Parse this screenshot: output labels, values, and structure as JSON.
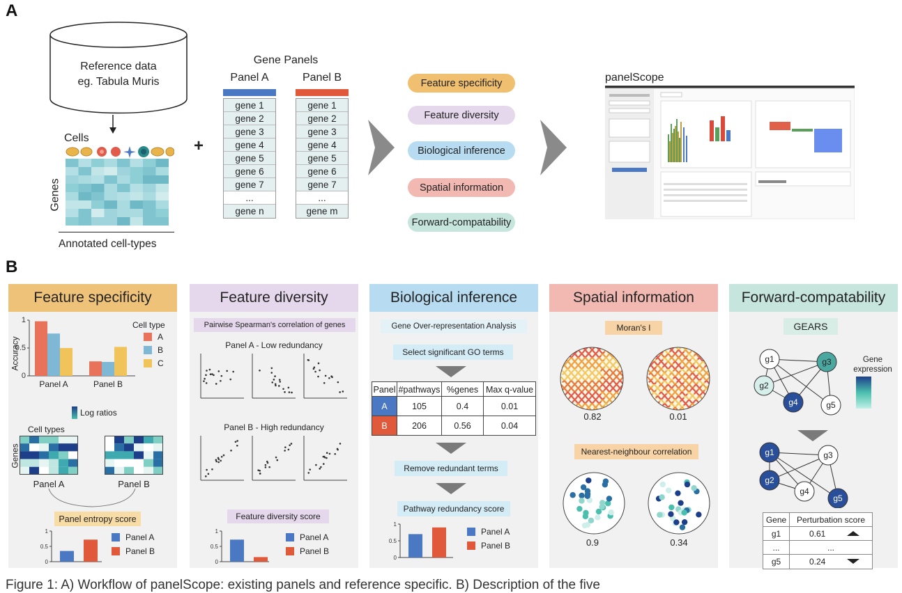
{
  "figure": {
    "section_a": "A",
    "section_b": "B",
    "caption": "Figure 1: A) Workflow of panelScope: existing panels and reference specific. B) Description of the five"
  },
  "workflow": {
    "reference_line1": "Reference data",
    "reference_line2": "eg. Tabula Muris",
    "cells_label": "Cells",
    "genes_label": "Genes",
    "annotated_label": "Annotated cell-types",
    "plus": "+",
    "gene_panels_title": "Gene Panels",
    "panel_a": {
      "name": "Panel A",
      "color": "#4a78c2",
      "genes": [
        "gene 1",
        "gene 2",
        "gene 3",
        "gene 4",
        "gene 5",
        "gene 6",
        "gene 7",
        "...",
        "gene n"
      ]
    },
    "panel_b": {
      "name": "Panel B",
      "color": "#e0593a",
      "genes": [
        "gene 1",
        "gene 2",
        "gene 3",
        "gene 4",
        "gene 5",
        "gene 6",
        "gene 7",
        "...",
        "gene m"
      ]
    },
    "metrics": [
      {
        "label": "Feature specificity",
        "color": "#f0c070"
      },
      {
        "label": "Feature diversity",
        "color": "#e6d8ec"
      },
      {
        "label": "Biological inference",
        "color": "#b7dcf2"
      },
      {
        "label": "Spatial information",
        "color": "#f2b8b2"
      },
      {
        "label": "Forward-compatability",
        "color": "#c6e6dd"
      }
    ],
    "app_title": "panelScope"
  },
  "panels": {
    "specificity": {
      "title": "Feature specificity",
      "header_color": "#efc27a",
      "accuracy_label": "Accuracy",
      "legend_title": "Cell type",
      "log_ratios": "Log ratios",
      "cell_types": "Cell types",
      "genes": "Genes",
      "entropy_score": "Panel entropy score",
      "legend_panel_a": "Panel A",
      "legend_panel_b": "Panel B"
    },
    "diversity": {
      "title": "Feature diversity",
      "header_color": "#e6d8ec",
      "pairwise": "Pairwise Spearman's correlation of genes",
      "low": "Panel A - Low redundancy",
      "high": "Panel B - High redundancy",
      "score": "Feature diversity score",
      "legend_panel_a": "Panel A",
      "legend_panel_b": "Panel B"
    },
    "inference": {
      "title": "Biological inference",
      "header_color": "#b7dcf2",
      "ora": "Gene Over-representation Analysis",
      "select": "Select significant GO terms",
      "table_headers": [
        "Panel",
        "#pathways",
        "%genes",
        "Max q-value"
      ],
      "rows": [
        {
          "panel": "A",
          "pathways": "105",
          "genes": "0.4",
          "q": "0.01",
          "color": "#4a78c2"
        },
        {
          "panel": "B",
          "pathways": "206",
          "genes": "0.56",
          "q": "0.04",
          "color": "#e0593a"
        }
      ],
      "remove": "Remove redundant terms",
      "redundancy": "Pathway redundancy score",
      "legend_panel_a": "Panel A",
      "legend_panel_b": "Panel B"
    },
    "spatial": {
      "title": "Spatial information",
      "header_color": "#f2b8b2",
      "morans": "Moran's I",
      "val1": "0.82",
      "val2": "0.01",
      "nn": "Nearest-neighbour correlation",
      "val3": "0.9",
      "val4": "0.34"
    },
    "forward": {
      "title": "Forward-compatability",
      "header_color": "#c6e6dd",
      "gears": "GEARS",
      "gene_expression_1": "Gene",
      "gene_expression_2": "expression",
      "nodes_top": [
        "g1",
        "g2",
        "g3",
        "g4",
        "g5"
      ],
      "nodes_bottom": [
        "g1",
        "g2",
        "g3",
        "g4",
        "g5"
      ],
      "table_headers": [
        "Gene",
        "Perturbation score"
      ],
      "rows": [
        {
          "gene": "g1",
          "score": "0.61"
        },
        {
          "gene": "...",
          "score": "..."
        },
        {
          "gene": "g5",
          "score": "0.24"
        }
      ]
    }
  },
  "chart_data": [
    {
      "type": "bar",
      "title": "",
      "ylabel": "Accuracy",
      "categories": [
        "Panel A",
        "Panel B"
      ],
      "series": [
        {
          "name": "A",
          "color": "#e8735a",
          "values": [
            0.98,
            0.26
          ]
        },
        {
          "name": "B",
          "color": "#7fb8d4",
          "values": [
            0.76,
            0.25
          ]
        },
        {
          "name": "C",
          "color": "#f0c45a",
          "values": [
            0.5,
            0.52
          ]
        }
      ],
      "yticks": [
        0,
        0.5,
        1
      ],
      "ylim": [
        0,
        1
      ]
    },
    {
      "type": "bar",
      "title": "",
      "categories": [
        "Panel A",
        "Panel B"
      ],
      "values": [
        0.35,
        0.72
      ],
      "yticks": [
        0,
        0.5,
        1
      ],
      "ylim": [
        0,
        1
      ]
    },
    {
      "type": "bar",
      "title": "",
      "categories": [
        "Panel A",
        "Panel B"
      ],
      "values": [
        0.72,
        0.15
      ],
      "yticks": [
        0,
        0.5,
        1
      ],
      "ylim": [
        0,
        1
      ]
    },
    {
      "type": "bar",
      "title": "",
      "categories": [
        "Panel A",
        "Panel B"
      ],
      "values": [
        0.7,
        0.9
      ],
      "yticks": [
        0,
        0.5,
        1
      ],
      "ylim": [
        0,
        1
      ]
    }
  ]
}
